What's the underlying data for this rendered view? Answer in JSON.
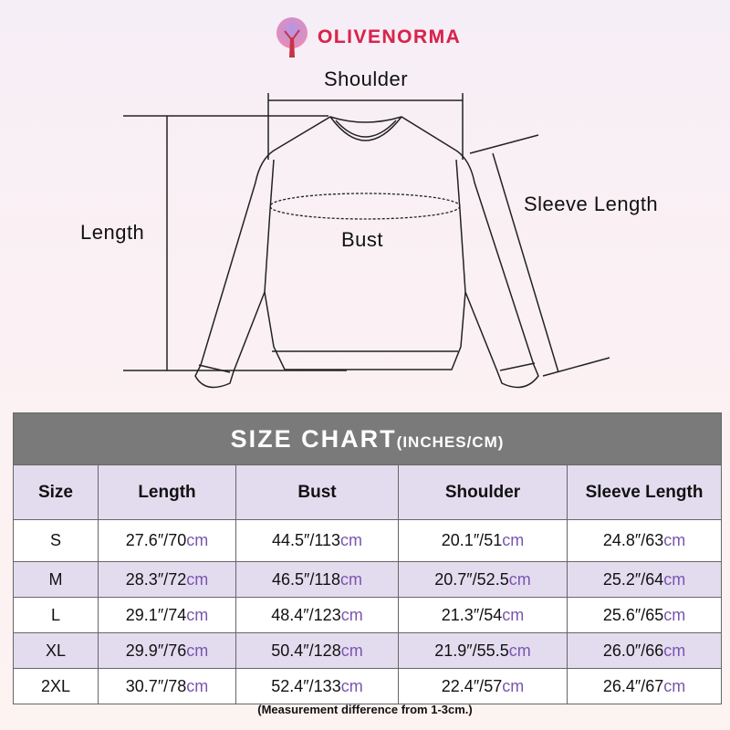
{
  "brand": {
    "name": "OLIVENORMA",
    "logo_icon": "tree-icon"
  },
  "diagram": {
    "shoulder": "Shoulder",
    "length": "Length",
    "bust": "Bust",
    "sleeve_length": "Sleeve Length"
  },
  "table": {
    "title": "SIZE CHART",
    "title_units": "(INCHES/CM)",
    "headers": [
      "Size",
      "Length",
      "Bust",
      "Shoulder",
      "Sleeve Length"
    ],
    "unit_color": "#7a55b0",
    "rows": [
      {
        "size": "S",
        "cells": [
          [
            "27.6″/70",
            "cm"
          ],
          [
            "44.5″/113",
            "cm"
          ],
          [
            "20.1″/51",
            "cm"
          ],
          [
            "24.8″/63",
            "cm"
          ]
        ]
      },
      {
        "size": "M",
        "cells": [
          [
            "28.3″/72",
            "cm"
          ],
          [
            "46.5″/118",
            "cm"
          ],
          [
            "20.7″/52.5",
            "cm"
          ],
          [
            "25.2″/64",
            "cm"
          ]
        ]
      },
      {
        "size": "L",
        "cells": [
          [
            "29.1″/74",
            "cm"
          ],
          [
            "48.4″/123",
            "cm"
          ],
          [
            "21.3″/54",
            "cm"
          ],
          [
            "25.6″/65",
            "cm"
          ]
        ]
      },
      {
        "size": "XL",
        "cells": [
          [
            "29.9″/76",
            "cm"
          ],
          [
            "50.4″/128",
            "cm"
          ],
          [
            "21.9″/55.5",
            "cm"
          ],
          [
            "26.0″/66",
            "cm"
          ]
        ]
      },
      {
        "size": "2XL",
        "cells": [
          [
            "30.7″/78",
            "cm"
          ],
          [
            "52.4″/133",
            "cm"
          ],
          [
            "22.4″/57",
            "cm"
          ],
          [
            "26.4″/67",
            "cm"
          ]
        ]
      }
    ]
  },
  "note": "(Measurement difference from 1-3cm.)"
}
